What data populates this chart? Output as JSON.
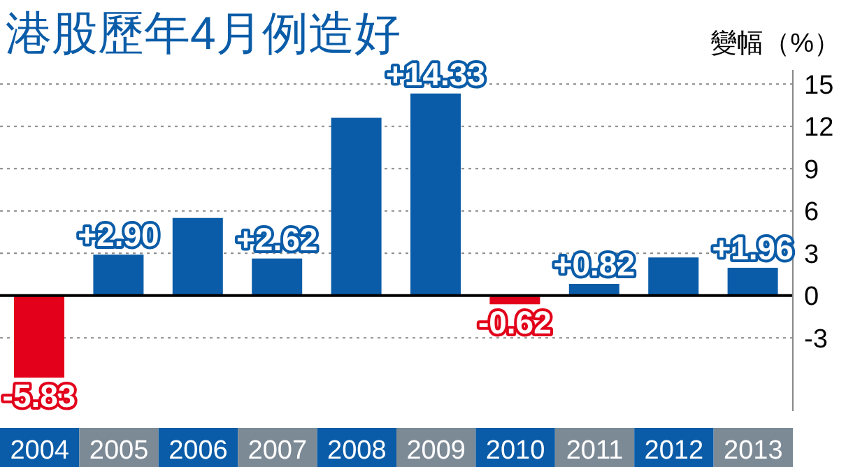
{
  "chart_data": {
    "type": "bar",
    "title": "港股歷年4月例造好",
    "ylabel": "變幅（%）",
    "categories": [
      "2004",
      "2005",
      "2006",
      "2007",
      "2008",
      "2009",
      "2010",
      "2011",
      "2012",
      "2013"
    ],
    "values": [
      -5.83,
      2.9,
      5.5,
      2.62,
      12.6,
      14.33,
      -0.62,
      0.82,
      2.7,
      1.96
    ],
    "colors": [
      "#e2001a",
      "#0a5ca8",
      "#0a5ca8",
      "#0a5ca8",
      "#0a5ca8",
      "#0a5ca8",
      "#e2001a",
      "#0a5ca8",
      "#0a5ca8",
      "#0a5ca8"
    ],
    "value_labels": [
      "-5.83",
      "+2.90",
      null,
      "+2.62",
      null,
      "+14.33",
      "-0.62",
      "+0.82",
      null,
      "+1.96"
    ],
    "ylim": [
      -8.2,
      16
    ],
    "yticks": [
      -3,
      0,
      3,
      6,
      9,
      12,
      15
    ],
    "grid": "y",
    "ref_lines": [
      {
        "axis": "y",
        "value": 0,
        "color": "#000000"
      }
    ]
  }
}
